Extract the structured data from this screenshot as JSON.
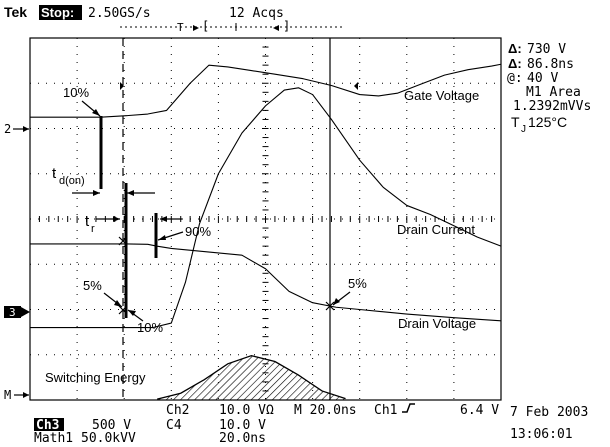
{
  "header": {
    "brand": "Tek",
    "run_state": "Stop:",
    "sample_rate": "2.50GS/s",
    "acquisitions": "12 Acqs"
  },
  "readouts": {
    "delta_v": "730 V",
    "delta_t": "86.8ns",
    "at_v": "40 V",
    "measure_name": "M1 Area",
    "measure_value": "1.2392mVVs",
    "temperature_prefix": "T",
    "temperature_sub": "J",
    "temperature_value": "125°C"
  },
  "labels": {
    "gate_voltage": "Gate Voltage",
    "drain_current": "Drain Current",
    "drain_voltage": "Drain Voltage",
    "switching_energy": "Switching Energy",
    "td_on_main": "t",
    "td_on_sub": "d(on)",
    "tr_main": "t",
    "tr_sub": "r",
    "pct_10_upper": "10%",
    "pct_90": "90%",
    "pct_5_left": "5%",
    "pct_10_lower": "10%",
    "pct_5_right": "5%"
  },
  "markers": {
    "ch2": "2",
    "ch3": "3",
    "math": "M"
  },
  "footer": {
    "row1": [
      "Ch3",
      "500 V",
      "Ch2",
      "10.0 VΩ",
      "M 20.0ns",
      "Ch1",
      "6.4 V"
    ],
    "row2": [
      "C4",
      "10.0 V"
    ],
    "row3": [
      "Math1",
      "50.0kVV",
      "20.0ns"
    ],
    "date": "7 Feb 2003",
    "time": "13:06:01"
  },
  "chart_data": {
    "type": "line",
    "x_unit": "time (20.0 ns/div)",
    "xlim": [
      0,
      10
    ],
    "ylim": [
      0,
      8
    ],
    "grid": true,
    "series": [
      {
        "name": "Gate Voltage",
        "x": [
          0,
          0.5,
          1,
          1.5,
          2,
          2.5,
          2.9,
          3.4,
          3.8,
          4.2,
          4.7,
          5.2,
          5.8,
          6.4,
          7.0,
          7.4,
          7.8,
          8.3,
          8.8,
          9.3,
          9.8,
          10
        ],
        "y": [
          6.25,
          6.25,
          6.25,
          6.25,
          6.28,
          6.32,
          6.4,
          7.0,
          7.4,
          7.36,
          7.28,
          7.2,
          7.1,
          6.95,
          6.75,
          6.72,
          6.78,
          6.98,
          7.18,
          7.3,
          7.38,
          7.42
        ]
      },
      {
        "name": "Drain Current",
        "x": [
          0,
          1,
          2,
          2.6,
          3.0,
          3.3,
          3.6,
          4.0,
          4.5,
          5.0,
          5.4,
          5.7,
          6.0,
          6.4,
          7.0,
          7.5,
          8.0,
          8.5,
          9.0,
          9.5,
          10
        ],
        "y": [
          1.6,
          1.6,
          1.6,
          1.6,
          1.7,
          2.6,
          3.9,
          5.0,
          5.9,
          6.5,
          6.85,
          6.9,
          6.75,
          6.2,
          5.3,
          4.7,
          4.3,
          4.1,
          3.85,
          3.6,
          3.4
        ]
      },
      {
        "name": "Drain Voltage",
        "x": [
          0,
          1,
          2,
          2.5,
          2.7,
          3.0,
          3.5,
          4.0,
          4.5,
          5.0,
          5.5,
          6.0,
          6.5,
          7.0,
          8.0,
          9.0,
          10
        ],
        "y": [
          3.45,
          3.45,
          3.45,
          3.44,
          3.4,
          3.35,
          3.3,
          3.25,
          3.2,
          2.9,
          2.4,
          2.15,
          2.05,
          2.0,
          1.9,
          1.82,
          1.75
        ]
      },
      {
        "name": "Switching Energy",
        "x": [
          2.7,
          3.2,
          3.7,
          4.2,
          4.7,
          5.2,
          5.7,
          6.2,
          6.7
        ],
        "y": [
          0.02,
          0.15,
          0.45,
          0.8,
          0.98,
          0.85,
          0.55,
          0.2,
          0.03
        ]
      }
    ]
  }
}
